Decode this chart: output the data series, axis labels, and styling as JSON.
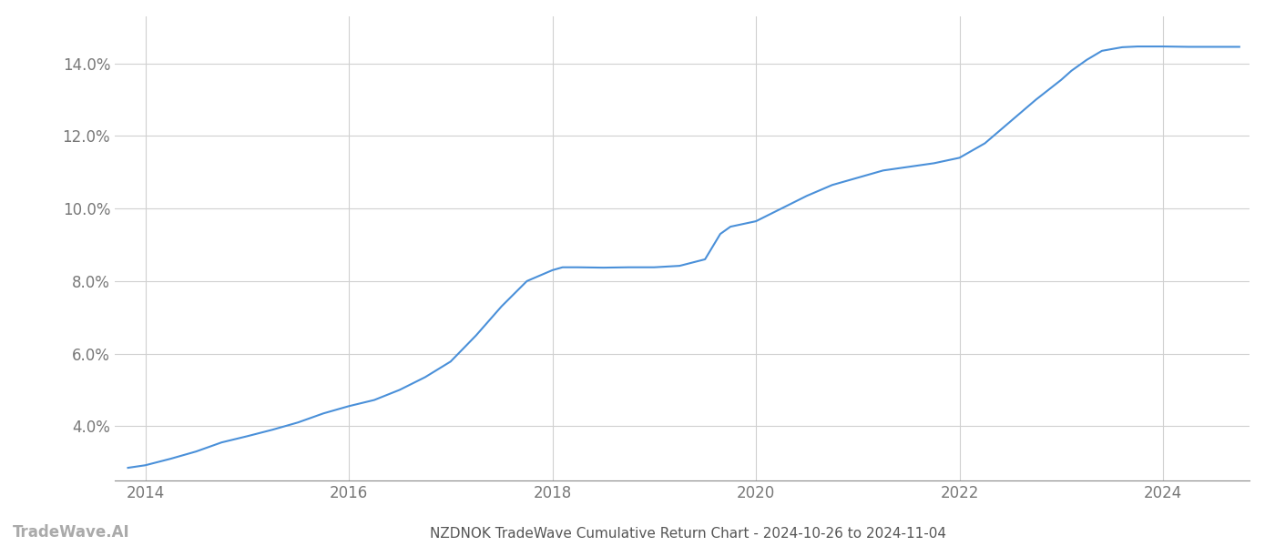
{
  "x_values": [
    2013.83,
    2014.0,
    2014.25,
    2014.5,
    2014.75,
    2015.0,
    2015.25,
    2015.5,
    2015.75,
    2016.0,
    2016.25,
    2016.5,
    2016.75,
    2017.0,
    2017.25,
    2017.5,
    2017.75,
    2018.0,
    2018.1,
    2018.25,
    2018.5,
    2018.75,
    2019.0,
    2019.25,
    2019.5,
    2019.65,
    2019.75,
    2020.0,
    2020.25,
    2020.5,
    2020.75,
    2021.0,
    2021.25,
    2021.5,
    2021.75,
    2022.0,
    2022.25,
    2022.5,
    2022.75,
    2023.0,
    2023.1,
    2023.25,
    2023.4,
    2023.6,
    2023.75,
    2024.0,
    2024.25,
    2024.5,
    2024.75
  ],
  "y_values": [
    2.85,
    2.92,
    3.1,
    3.3,
    3.55,
    3.72,
    3.9,
    4.1,
    4.35,
    4.55,
    4.72,
    5.0,
    5.35,
    5.78,
    6.5,
    7.3,
    8.0,
    8.3,
    8.38,
    8.38,
    8.37,
    8.38,
    8.38,
    8.42,
    8.6,
    9.3,
    9.5,
    9.65,
    10.0,
    10.35,
    10.65,
    10.85,
    11.05,
    11.15,
    11.25,
    11.4,
    11.8,
    12.4,
    13.0,
    13.55,
    13.8,
    14.1,
    14.35,
    14.45,
    14.47,
    14.47,
    14.46,
    14.46,
    14.46
  ],
  "line_color": "#4a90d9",
  "line_width": 1.5,
  "title": "NZDNOK TradeWave Cumulative Return Chart - 2024-10-26 to 2024-11-04",
  "xlim": [
    2013.7,
    2024.85
  ],
  "ylim": [
    2.5,
    15.3
  ],
  "yticks": [
    4.0,
    6.0,
    8.0,
    10.0,
    12.0,
    14.0
  ],
  "xticks": [
    2014,
    2016,
    2018,
    2020,
    2022,
    2024
  ],
  "background_color": "#ffffff",
  "grid_color": "#d0d0d0",
  "watermark_text": "TradeWave.AI",
  "watermark_color": "#aaaaaa",
  "title_fontsize": 11,
  "tick_fontsize": 12,
  "watermark_fontsize": 12
}
